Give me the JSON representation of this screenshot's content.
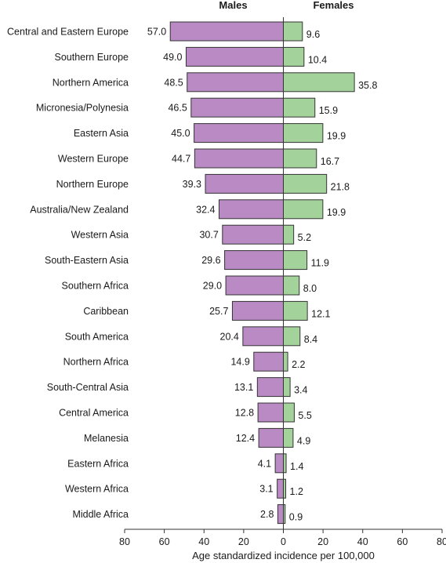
{
  "chart_data": {
    "type": "bar",
    "orientation": "horizontal",
    "layout": "population-pyramid",
    "categories": [
      "Central and Eastern Europe",
      "Southern Europe",
      "Northern America",
      "Micronesia/Polynesia",
      "Eastern Asia",
      "Western Europe",
      "Northern Europe",
      "Australia/New Zealand",
      "Western Asia",
      "South-Eastern Asia",
      "Southern Africa",
      "Caribbean",
      "South America",
      "Northern Africa",
      "South-Central Asia",
      "Central America",
      "Melanesia",
      "Eastern Africa",
      "Western Africa",
      "Middle Africa"
    ],
    "series": [
      {
        "name": "Males",
        "side": "left",
        "color": "#b98ac4",
        "values": [
          57.0,
          49.0,
          48.5,
          46.5,
          45.0,
          44.7,
          39.3,
          32.4,
          30.7,
          29.6,
          29.0,
          25.7,
          20.4,
          14.9,
          13.1,
          12.8,
          12.4,
          4.1,
          3.1,
          2.8
        ],
        "value_labels": [
          "57.0",
          "49.0",
          "48.5",
          "46.5",
          "45.0",
          "44.7",
          "39.3",
          "32.4",
          "30.7",
          "29.6",
          "29.0",
          "25.7",
          "20.4",
          "14.9",
          "13.1",
          "12.8",
          "12.4",
          "4.1",
          "3.1",
          "2.8"
        ]
      },
      {
        "name": "Females",
        "side": "right",
        "color": "#a3d29a",
        "values": [
          9.6,
          10.4,
          35.8,
          15.9,
          19.9,
          16.7,
          21.8,
          19.9,
          5.2,
          11.9,
          8.0,
          12.1,
          8.4,
          2.2,
          3.4,
          5.5,
          4.9,
          1.4,
          1.2,
          0.9
        ],
        "value_labels": [
          "9.6",
          "10.4",
          "35.8",
          "15.9",
          "19.9",
          "16.7",
          "21.8",
          "19.9",
          "5.2",
          "11.9",
          "8.0",
          "12.1",
          "8.4",
          "2.2",
          "3.4",
          "5.5",
          "4.9",
          "1.4",
          "1.2",
          "0.9"
        ]
      }
    ],
    "xlim": [
      -80,
      80
    ],
    "xticks": [
      -80,
      -60,
      -40,
      -20,
      0,
      20,
      40,
      60,
      80
    ],
    "xtick_labels": [
      "80",
      "60",
      "40",
      "20",
      "0",
      "20",
      "40",
      "60",
      "80"
    ],
    "xlabel": "Age standardized incidence per 100,000",
    "ylabel": "",
    "title": "",
    "grid": false,
    "legend": "none",
    "bar_edge_color": "#333333"
  }
}
